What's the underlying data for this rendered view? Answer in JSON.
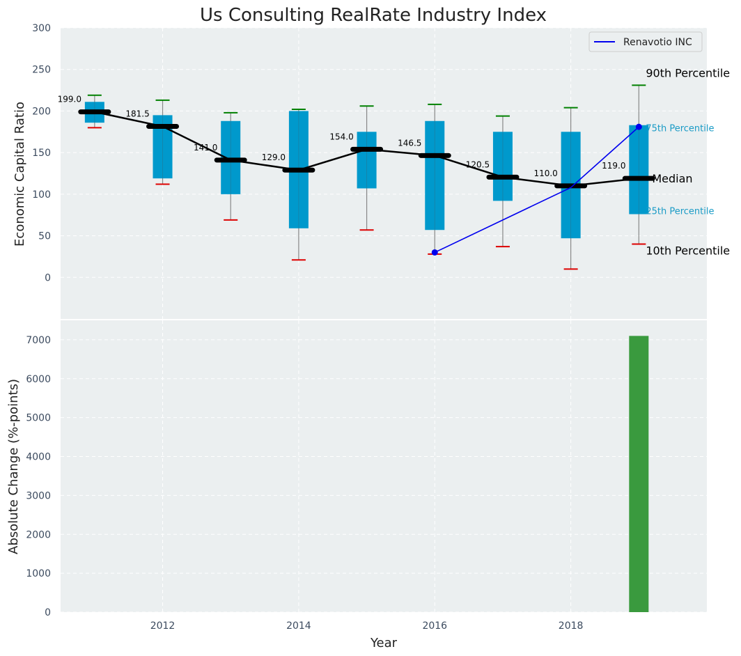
{
  "chart_data": [
    {
      "type": "box",
      "title": "Us Consulting RealRate Industry Index",
      "xlabel": "",
      "ylabel": "Economic Capital Ratio",
      "ylim": [
        -50,
        300
      ],
      "yticks": [
        0,
        50,
        100,
        150,
        200,
        250,
        300
      ],
      "grid": true,
      "legend_position": "top-right",
      "years": [
        2011,
        2012,
        2013,
        2014,
        2015,
        2016,
        2017,
        2018,
        2019
      ],
      "p10": [
        180,
        112,
        69,
        21,
        57,
        28,
        37,
        10,
        40
      ],
      "p25": [
        186,
        119,
        100,
        59,
        107,
        57,
        92,
        47,
        76
      ],
      "median": [
        199.0,
        181.5,
        141.0,
        129.0,
        154.0,
        146.5,
        120.5,
        110.0,
        119.0
      ],
      "median_labels": [
        "199.0",
        "181.5",
        "141.0",
        "129.0",
        "154.0",
        "146.5",
        "120.5",
        "110.0",
        "119.0"
      ],
      "p75": [
        211,
        195,
        188,
        200,
        175,
        188,
        175,
        175,
        183
      ],
      "p90": [
        219,
        213,
        198,
        202,
        206,
        208,
        194,
        204,
        231
      ],
      "company_series": {
        "name": "Renavotio INC",
        "x": [
          2016,
          2018,
          2019
        ],
        "y": [
          30,
          108,
          181
        ],
        "color": "#0000ee"
      },
      "annotations": {
        "p90": "90th Percentile",
        "p75": "75th Percentile",
        "median": "Median",
        "p25": "25th Percentile",
        "p10": "10th Percentile"
      },
      "colors": {
        "box": "#0099cc",
        "median_line": "#000000",
        "p90_cap": "#008000",
        "p10_cap": "#dd0000",
        "whisker": "#888888",
        "background": "#ebeff0"
      }
    },
    {
      "type": "bar",
      "xlabel": "Year",
      "ylabel": "Absolute Change (%-points)",
      "ylim": [
        0,
        7500
      ],
      "yticks": [
        0,
        1000,
        2000,
        3000,
        4000,
        5000,
        6000,
        7000
      ],
      "xticks": [
        2012,
        2014,
        2016,
        2018
      ],
      "x": [
        2019
      ],
      "values": [
        7100
      ],
      "color": "#3a9a3e",
      "grid": true
    }
  ]
}
